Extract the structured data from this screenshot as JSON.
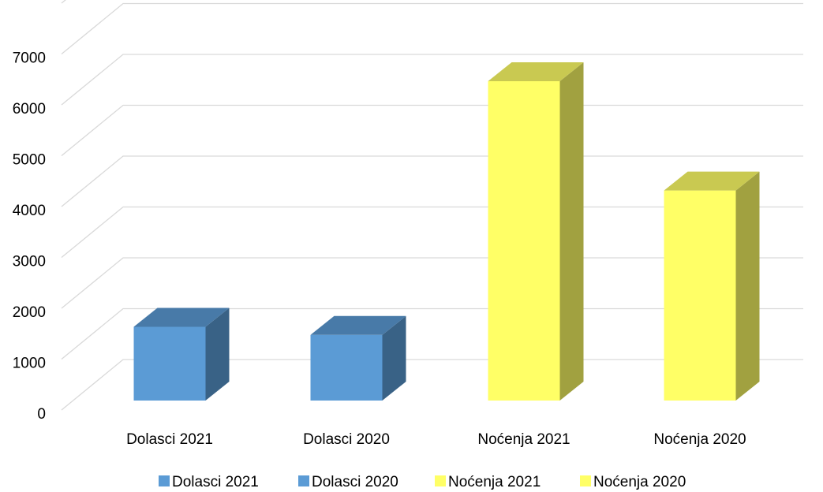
{
  "chart_data": {
    "type": "bar",
    "style": "3d-column",
    "title": "",
    "xlabel": "",
    "ylabel": "",
    "categories": [
      "Dolasci 2021",
      "Dolasci 2020",
      "Noćenja 2021",
      "Noćenja 2020"
    ],
    "series": [
      {
        "name": "Dolasci 2021",
        "color": "#5b9bd5",
        "values": [
          1450,
          null,
          null,
          null
        ]
      },
      {
        "name": "Dolasci 2020",
        "color": "#5b9bd5",
        "values": [
          null,
          1290,
          null,
          null
        ]
      },
      {
        "name": "Noćenja 2021",
        "color": "#ffff66",
        "values": [
          null,
          null,
          6280,
          null
        ]
      },
      {
        "name": "Noćenja 2020",
        "color": "#ffff66",
        "values": [
          null,
          null,
          null,
          4130
        ]
      }
    ],
    "ylim": [
      0,
      7000
    ],
    "yticks": [
      "0",
      "1000",
      "2000",
      "3000",
      "4000",
      "5000",
      "6000",
      "7000"
    ],
    "grid": true,
    "legend_position": "bottom"
  }
}
